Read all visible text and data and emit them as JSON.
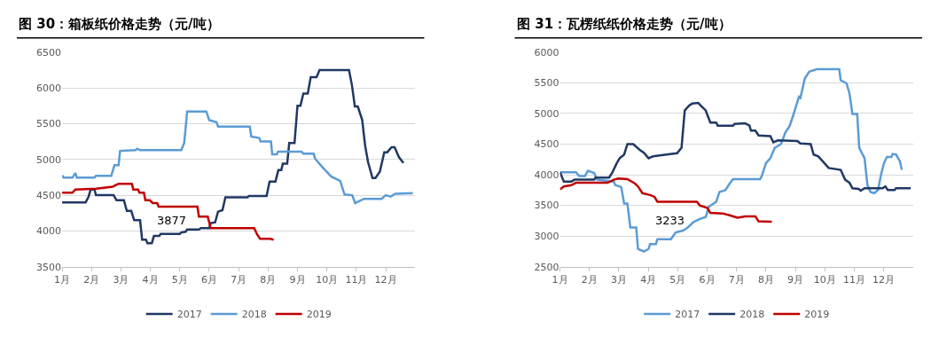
{
  "chart_data": [
    {
      "type": "line",
      "title": "图 30：箱板纸价格走势（元/吨）",
      "xlim": [
        1,
        13
      ],
      "ylim": [
        3500,
        6500
      ],
      "xticks": [
        {
          "value": 1,
          "label": "1月"
        },
        {
          "value": 2,
          "label": "2月"
        },
        {
          "value": 3,
          "label": "3月"
        },
        {
          "value": 4,
          "label": "4月"
        },
        {
          "value": 5,
          "label": "5月"
        },
        {
          "value": 6,
          "label": "6月"
        },
        {
          "value": 7,
          "label": "7月"
        },
        {
          "value": 8,
          "label": "8月"
        },
        {
          "value": 9,
          "label": "9月"
        },
        {
          "value": 10,
          "label": "10月"
        },
        {
          "value": 11,
          "label": "11月"
        },
        {
          "value": 12,
          "label": "12月"
        }
      ],
      "yticks": [
        3500,
        4000,
        4500,
        5000,
        5500,
        6000,
        6500
      ],
      "grid": "y",
      "legend": "bottom",
      "annotations": [
        "3877"
      ],
      "series": [
        {
          "name": "2017",
          "color": "#203864",
          "x": [
            1,
            1.8,
            1.9,
            1.97,
            2.1,
            2.15,
            2.75,
            2.85,
            3.1,
            3.2,
            3.35,
            3.45,
            3.65,
            3.72,
            3.85,
            3.9,
            4.05,
            4.12,
            4.3,
            4.35,
            5.0,
            5.05,
            5.2,
            5.25,
            5.65,
            5.72,
            6.0,
            6.05,
            6.2,
            6.3,
            6.45,
            6.55,
            7.3,
            7.35,
            7.95,
            8.05,
            8.25,
            8.35,
            8.45,
            8.5,
            8.65,
            8.72,
            8.9,
            9.0,
            9.1,
            9.2,
            9.35,
            9.45,
            9.65,
            9.75,
            10.75,
            10.85,
            10.95,
            11.05,
            11.2,
            11.3,
            11.4,
            11.55,
            11.65,
            11.8,
            11.95,
            12.05,
            12.2,
            12.3,
            12.45,
            12.6
          ],
          "values": [
            4400,
            4400,
            4480,
            4580,
            4580,
            4500,
            4500,
            4430,
            4430,
            4280,
            4280,
            4150,
            4150,
            3880,
            3880,
            3830,
            3830,
            3930,
            3930,
            3960,
            3960,
            3980,
            3990,
            4020,
            4020,
            4040,
            4040,
            4110,
            4120,
            4270,
            4290,
            4470,
            4470,
            4490,
            4490,
            4690,
            4690,
            4850,
            4850,
            4940,
            4940,
            5230,
            5230,
            5750,
            5750,
            5920,
            5920,
            6150,
            6150,
            6250,
            6250,
            6040,
            5740,
            5740,
            5550,
            5190,
            4960,
            4740,
            4740,
            4830,
            5100,
            5100,
            5170,
            5170,
            5030,
            4950
          ]
        },
        {
          "name": "2018",
          "color": "#5b9bd5",
          "x": [
            1,
            1.05,
            1.35,
            1.45,
            1.5,
            2.1,
            2.15,
            2.67,
            2.78,
            2.92,
            2.97,
            3.5,
            3.55,
            3.65,
            5.05,
            5.15,
            5.25,
            5.9,
            6.0,
            6.25,
            6.3,
            7.38,
            7.43,
            7.7,
            7.75,
            8.1,
            8.14,
            8.3,
            8.34,
            9.14,
            9.2,
            9.55,
            9.6,
            9.85,
            10.15,
            10.45,
            10.6,
            10.86,
            10.96,
            11.26,
            11.86,
            12.0,
            12.17,
            12.32,
            12.92
          ],
          "values": [
            4780,
            4745,
            4745,
            4810,
            4745,
            4745,
            4770,
            4770,
            4920,
            4920,
            5120,
            5130,
            5150,
            5130,
            5130,
            5230,
            5670,
            5670,
            5550,
            5520,
            5460,
            5460,
            5320,
            5300,
            5250,
            5250,
            5070,
            5070,
            5110,
            5110,
            5080,
            5080,
            5010,
            4890,
            4760,
            4700,
            4510,
            4500,
            4390,
            4450,
            4450,
            4500,
            4480,
            4520,
            4530
          ]
        },
        {
          "name": "2019",
          "color": "#c00000",
          "x": [
            1,
            1.35,
            1.45,
            2.16,
            2.72,
            2.92,
            3.37,
            3.42,
            3.58,
            3.63,
            3.78,
            3.83,
            3.98,
            4.08,
            4.23,
            4.28,
            5.6,
            5.65,
            5.95,
            6.05,
            7.53,
            7.63,
            7.73,
            8.08,
            8.19
          ],
          "values": [
            4535,
            4535,
            4580,
            4590,
            4620,
            4660,
            4660,
            4580,
            4580,
            4535,
            4535,
            4430,
            4430,
            4390,
            4390,
            4340,
            4340,
            4200,
            4200,
            4040,
            4040,
            3950,
            3890,
            3890,
            3877
          ]
        }
      ]
    },
    {
      "type": "line",
      "title": "图 31：瓦楞纸纸价格走势（元/吨）",
      "xlim": [
        1,
        13
      ],
      "ylim": [
        2500,
        6000
      ],
      "xticks": [
        {
          "value": 1,
          "label": "1月"
        },
        {
          "value": 2,
          "label": "2月"
        },
        {
          "value": 3,
          "label": "3月"
        },
        {
          "value": 4,
          "label": "4月"
        },
        {
          "value": 5,
          "label": "5月"
        },
        {
          "value": 6,
          "label": "6月"
        },
        {
          "value": 7,
          "label": "7月"
        },
        {
          "value": 8,
          "label": "8月"
        },
        {
          "value": 9,
          "label": "9月"
        },
        {
          "value": 10,
          "label": "10月"
        },
        {
          "value": 11,
          "label": "11月"
        },
        {
          "value": 12,
          "label": "12月"
        }
      ],
      "yticks": [
        2500,
        3000,
        3500,
        4000,
        4500,
        5000,
        5500,
        6000
      ],
      "grid": "y",
      "legend": "bottom",
      "annotations": [
        "3233"
      ],
      "series": [
        {
          "name": "2017",
          "color": "#5b9bd5",
          "x": [
            1,
            1.03,
            1.54,
            1.65,
            1.85,
            1.95,
            2.16,
            2.26,
            2.83,
            2.88,
            3.08,
            3.18,
            3.29,
            3.39,
            3.59,
            3.65,
            3.85,
            4.01,
            4.06,
            4.26,
            4.31,
            4.77,
            4.93,
            5.18,
            5.34,
            5.54,
            5.75,
            5.95,
            6.06,
            6.31,
            6.42,
            6.62,
            6.77,
            6.88,
            7.8,
            7.85,
            8.0,
            8.15,
            8.3,
            8.51,
            8.66,
            8.81,
            8.96,
            9.12,
            9.17,
            9.32,
            9.47,
            9.73,
            10.49,
            10.54,
            10.74,
            10.84,
            10.94,
            11.1,
            11.17,
            11.35,
            11.45,
            11.55,
            11.68,
            11.81,
            11.91,
            12.01,
            12.11,
            12.26,
            12.31,
            12.42,
            12.55,
            12.62
          ],
          "values": [
            4030,
            4040,
            4040,
            3980,
            3980,
            4065,
            4030,
            3920,
            3890,
            3830,
            3800,
            3530,
            3530,
            3140,
            3140,
            2790,
            2750,
            2790,
            2870,
            2870,
            2950,
            2950,
            3060,
            3090,
            3140,
            3230,
            3280,
            3310,
            3480,
            3560,
            3720,
            3750,
            3860,
            3930,
            3930,
            3970,
            4190,
            4270,
            4440,
            4500,
            4690,
            4800,
            5020,
            5270,
            5250,
            5570,
            5680,
            5720,
            5720,
            5540,
            5490,
            5320,
            4990,
            4990,
            4440,
            4270,
            3830,
            3720,
            3700,
            3750,
            4000,
            4190,
            4290,
            4290,
            4340,
            4330,
            4220,
            4080
          ]
        },
        {
          "name": "2018",
          "color": "#203864",
          "x": [
            1,
            1.13,
            1.39,
            1.49,
            2.16,
            2.21,
            2.67,
            2.77,
            2.93,
            3.03,
            3.18,
            3.29,
            3.49,
            3.7,
            3.85,
            4.01,
            4.16,
            4.62,
            4.98,
            5.13,
            5.24,
            5.39,
            5.49,
            5.7,
            5.8,
            5.95,
            6.11,
            6.31,
            6.36,
            6.88,
            6.93,
            7.29,
            7.44,
            7.49,
            7.64,
            7.75,
            8.15,
            8.25,
            8.41,
            9.07,
            9.17,
            9.52,
            9.62,
            9.78,
            10.13,
            10.54,
            10.69,
            10.84,
            10.94,
            11.15,
            11.22,
            11.35,
            11.96,
            12.06,
            12.14,
            12.37,
            12.42,
            12.92
          ],
          "values": [
            4040,
            3890,
            3890,
            3920,
            3920,
            3955,
            3955,
            4030,
            4190,
            4270,
            4330,
            4500,
            4500,
            4410,
            4360,
            4270,
            4300,
            4330,
            4350,
            4440,
            5050,
            5130,
            5160,
            5170,
            5120,
            5050,
            4850,
            4850,
            4800,
            4800,
            4830,
            4840,
            4800,
            4720,
            4720,
            4640,
            4630,
            4530,
            4560,
            4550,
            4510,
            4500,
            4330,
            4300,
            4110,
            4080,
            3920,
            3870,
            3780,
            3770,
            3740,
            3780,
            3780,
            3810,
            3750,
            3750,
            3780,
            3780
          ]
        },
        {
          "name": "2019",
          "color": "#c00000",
          "x": [
            1,
            1.13,
            1.39,
            1.54,
            2.62,
            2.83,
            2.98,
            3.29,
            3.54,
            3.65,
            3.8,
            4.06,
            4.21,
            4.31,
            5.65,
            5.75,
            6.0,
            6.11,
            6.52,
            6.77,
            7.03,
            7.29,
            7.64,
            7.75,
            8.2
          ],
          "values": [
            3760,
            3810,
            3830,
            3870,
            3870,
            3920,
            3940,
            3930,
            3860,
            3810,
            3700,
            3670,
            3640,
            3560,
            3560,
            3500,
            3460,
            3380,
            3370,
            3340,
            3300,
            3320,
            3320,
            3240,
            3233
          ]
        }
      ]
    }
  ]
}
